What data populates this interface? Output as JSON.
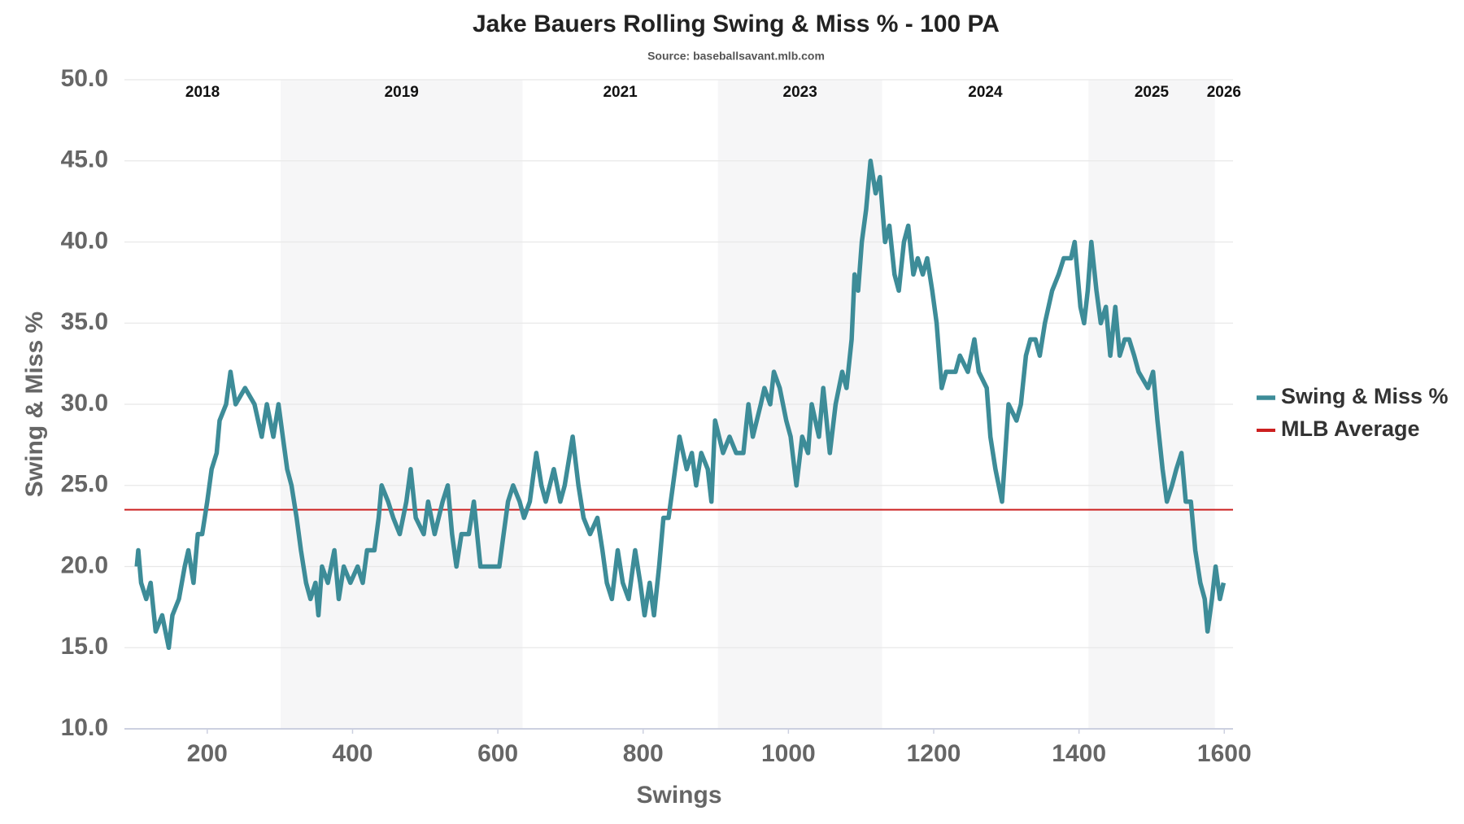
{
  "chart_data": {
    "type": "line",
    "title": "Jake Bauers Rolling Swing & Miss % - 100 PA",
    "subtitle": "Source: baseballsavant.mlb.com",
    "x_label": "Swings",
    "y_label": "Swing & Miss %",
    "x": [
      103,
      105,
      109,
      116,
      122,
      129,
      138,
      147,
      152,
      161,
      169,
      174,
      181,
      187,
      193,
      200,
      206,
      213,
      217,
      226,
      232,
      239,
      252,
      265,
      275,
      282,
      291,
      298,
      304,
      310,
      316,
      323,
      329,
      336,
      342,
      349,
      353,
      358,
      366,
      375,
      381,
      388,
      397,
      407,
      414,
      420,
      430,
      436,
      440,
      449,
      456,
      465,
      474,
      480,
      487,
      498,
      504,
      513,
      524,
      531,
      537,
      543,
      550,
      560,
      567,
      576,
      589,
      602,
      608,
      614,
      621,
      630,
      636,
      644,
      653,
      660,
      666,
      677,
      686,
      692,
      703,
      711,
      718,
      727,
      737,
      744,
      750,
      757,
      765,
      772,
      780,
      789,
      796,
      802,
      809,
      815,
      822,
      828,
      835,
      841,
      850,
      860,
      867,
      873,
      880,
      889,
      894,
      899,
      910,
      919,
      928,
      938,
      945,
      951,
      962,
      967,
      975,
      980,
      988,
      997,
      1003,
      1011,
      1019,
      1027,
      1032,
      1042,
      1048,
      1057,
      1065,
      1074,
      1080,
      1087,
      1091,
      1096,
      1101,
      1107,
      1113,
      1120,
      1126,
      1133,
      1139,
      1146,
      1152,
      1159,
      1165,
      1172,
      1178,
      1185,
      1191,
      1198,
      1204,
      1211,
      1217,
      1230,
      1236,
      1247,
      1256,
      1262,
      1273,
      1278,
      1285,
      1294,
      1303,
      1314,
      1320,
      1327,
      1333,
      1340,
      1346,
      1353,
      1363,
      1372,
      1379,
      1389,
      1394,
      1402,
      1407,
      1412,
      1417,
      1424,
      1430,
      1437,
      1443,
      1450,
      1456,
      1463,
      1469,
      1476,
      1482,
      1495,
      1502,
      1508,
      1515,
      1521,
      1528,
      1534,
      1541,
      1547,
      1554,
      1560,
      1567,
      1573,
      1577,
      1583,
      1588,
      1594,
      1599
    ],
    "series": [
      {
        "name": "Swing & Miss %",
        "color": "#3d8c98",
        "values": [
          20,
          21,
          19,
          18,
          19,
          16,
          17,
          15,
          17,
          18,
          20,
          21,
          19,
          22,
          22,
          24,
          26,
          27,
          29,
          30,
          32,
          30,
          31,
          30,
          28,
          30,
          28,
          30,
          28,
          26,
          25,
          23,
          21,
          19,
          18,
          19,
          17,
          20,
          19,
          21,
          18,
          20,
          19,
          20,
          19,
          21,
          21,
          23,
          25,
          24,
          23,
          22,
          24,
          26,
          23,
          22,
          24,
          22,
          24,
          25,
          22,
          20,
          22,
          22,
          24,
          20,
          20,
          20,
          22,
          24,
          25,
          24,
          23,
          24,
          27,
          25,
          24,
          26,
          24,
          25,
          28,
          25,
          23,
          22,
          23,
          21,
          19,
          18,
          21,
          19,
          18,
          21,
          19,
          17,
          19,
          17,
          20,
          23,
          23,
          25,
          28,
          26,
          27,
          25,
          27,
          26,
          24,
          29,
          27,
          28,
          27,
          27,
          30,
          28,
          30,
          31,
          30,
          32,
          31,
          29,
          28,
          25,
          28,
          27,
          30,
          28,
          31,
          27,
          30,
          32,
          31,
          34,
          38,
          37,
          40,
          42,
          45,
          43,
          44,
          40,
          41,
          38,
          37,
          40,
          41,
          38,
          39,
          38,
          39,
          37,
          35,
          31,
          32,
          32,
          33,
          32,
          34,
          32,
          31,
          28,
          26,
          24,
          30,
          29,
          30,
          33,
          34,
          34,
          33,
          35,
          37,
          38,
          39,
          39,
          40,
          36,
          35,
          37,
          40,
          37,
          35,
          36,
          33,
          36,
          33,
          34,
          34,
          33,
          32,
          31,
          32,
          29,
          26,
          24,
          25,
          26,
          27,
          24,
          24,
          21,
          19,
          18,
          16,
          18,
          20,
          18,
          19
        ]
      }
    ],
    "reference_lines": [
      {
        "name": "MLB Average",
        "value": 23.5,
        "color": "#cc2020"
      }
    ],
    "year_bands": [
      {
        "label": "2018",
        "start": 86,
        "end": 301,
        "shaded": false
      },
      {
        "label": "2019",
        "start": 301,
        "end": 634,
        "shaded": true
      },
      {
        "label": "2021",
        "start": 634,
        "end": 903,
        "shaded": false
      },
      {
        "label": "2023",
        "start": 903,
        "end": 1129,
        "shaded": true
      },
      {
        "label": "2024",
        "start": 1129,
        "end": 1413,
        "shaded": false
      },
      {
        "label": "2025",
        "start": 1413,
        "end": 1587,
        "shaded": true
      },
      {
        "label": "2026",
        "start": 1587,
        "end": 1612,
        "shaded": false
      }
    ],
    "xlim": [
      86,
      1612
    ],
    "ylim": [
      10,
      50
    ],
    "xticks": [
      200,
      400,
      600,
      800,
      1000,
      1200,
      1400,
      1600
    ],
    "yticks": [
      {
        "value": 10,
        "label": "10.0"
      },
      {
        "value": 15,
        "label": "15.0"
      },
      {
        "value": 20,
        "label": "20.0"
      },
      {
        "value": 25,
        "label": "25.0"
      },
      {
        "value": 30,
        "label": "30.0"
      },
      {
        "value": 35,
        "label": "35.0"
      },
      {
        "value": 40,
        "label": "40.0"
      },
      {
        "value": 45,
        "label": "45.0"
      },
      {
        "value": 50,
        "label": "50.0"
      }
    ],
    "grid": true,
    "legend": "right"
  }
}
